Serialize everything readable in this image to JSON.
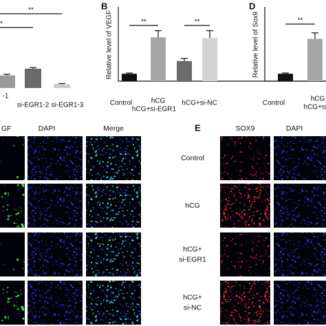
{
  "chart_data": [
    {
      "type": "bar",
      "categories": [
        "-1",
        "si-EGR1-2",
        "si-EGR1-3"
      ],
      "values": [
        1.7,
        2.6,
        0.5
      ],
      "errors": [
        0.15,
        0.15,
        0.1
      ],
      "colors": [
        "#9a9a9a",
        "#6a6a6a",
        "#cacaca"
      ],
      "ylim": [
        0,
        10
      ],
      "annotations": [
        {
          "label": "**",
          "from": 0,
          "to": 2
        },
        {
          "label": "*",
          "from": 0,
          "to": 1
        }
      ]
    },
    {
      "type": "bar",
      "panel": "B",
      "ylabel": "Relative level of VEGF",
      "categories": [
        "Control",
        "hCG",
        "hCG+si-EGR1",
        "hCG+si-NC"
      ],
      "values": [
        1,
        5.9,
        2.7,
        5.8
      ],
      "errors": [
        0.1,
        0.9,
        0.35,
        1.0
      ],
      "colors": [
        "#111111",
        "#a6a6a6",
        "#6a6a6a",
        "#d4d4d4"
      ],
      "ylim": [
        0,
        10
      ],
      "annotations": [
        {
          "label": "**",
          "from": 0,
          "to": 1
        },
        {
          "label": "**",
          "from": 2,
          "to": 3
        }
      ]
    },
    {
      "type": "bar",
      "panel": "D",
      "ylabel": "Relative  level of Sox9",
      "categories": [
        "Control",
        "hCG",
        "hCG+si-"
      ],
      "values": [
        1,
        5.7,
        null
      ],
      "errors": [
        0.1,
        0.8,
        null
      ],
      "colors": [
        "#111111",
        "#a6a6a6",
        "#6a6a6a"
      ],
      "ylim": [
        0,
        10
      ],
      "annotations": [
        {
          "label": "**",
          "from": 0,
          "to": 1
        }
      ]
    }
  ],
  "vegf_panel": {
    "columns": [
      "GF",
      "DAPI",
      "Merge"
    ]
  },
  "sox9_panel": {
    "letter": "E",
    "columns": [
      "SOX9",
      "DAPI"
    ],
    "rows": [
      [
        "Control"
      ],
      [
        "hCG"
      ],
      [
        "hCG+",
        "si-EGR1"
      ],
      [
        "hCG+",
        "si-NC"
      ]
    ]
  }
}
